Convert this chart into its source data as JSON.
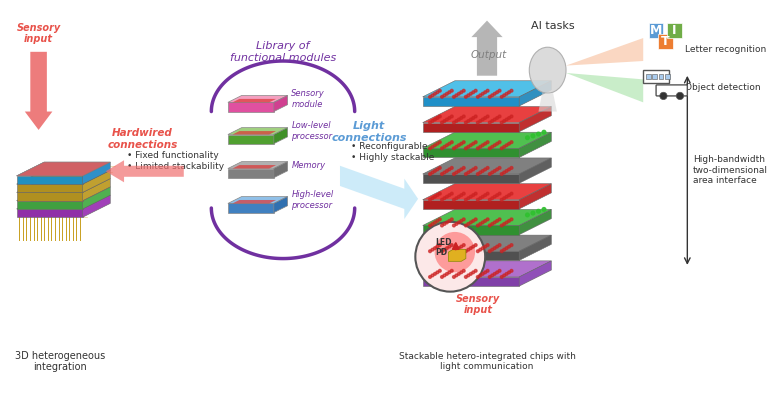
{
  "bg_color": "#ffffff",
  "figsize": [
    7.68,
    3.94
  ],
  "dpi": 100,
  "labels": {
    "sensory_input_left": "Sensory\ninput",
    "hardwired": "Hardwired\nconnections",
    "fixed_func": "Fixed functionality",
    "limited_stack": "Limited stackability",
    "library": "Library of\nfunctional modules",
    "sensory_module": "Sensory\nmodule",
    "low_level": "Low-level\nprocessor",
    "memory": "Memory",
    "high_level": "High-level\nprocessor",
    "light_conn": "Light\nconnections",
    "reconfig": "Reconfigurable",
    "highly_stack": "Highly stackable",
    "output": "Output",
    "ai_tasks": "AI tasks",
    "letter_rec": "Letter recognition",
    "object_det": "Object detection",
    "sensory_input_right": "Sensory\ninput",
    "led_pd": "LED\nPD",
    "high_bw": "High-bandwidth\ntwo-dimensional\narea interface",
    "bottom_left": "3D heterogeneous\nintegration",
    "bottom_right": "Stackable hetero-integrated chips with\nlight communication"
  },
  "colors": {
    "sensory_arrow": "#e8524a",
    "hardwired_text": "#e8524a",
    "light_conn_text": "#5b9bd5",
    "library_text": "#7030a0",
    "purple_arc": "#7030a0",
    "output_text": "#808080",
    "sensory_right_text": "#e8524a",
    "M_color": "#5b9bd5",
    "T_color": "#ed7d31",
    "I_color": "#70ad47",
    "arrow_gray": "#a0a0a0",
    "light_blue_arrow": "#aed6f1"
  }
}
